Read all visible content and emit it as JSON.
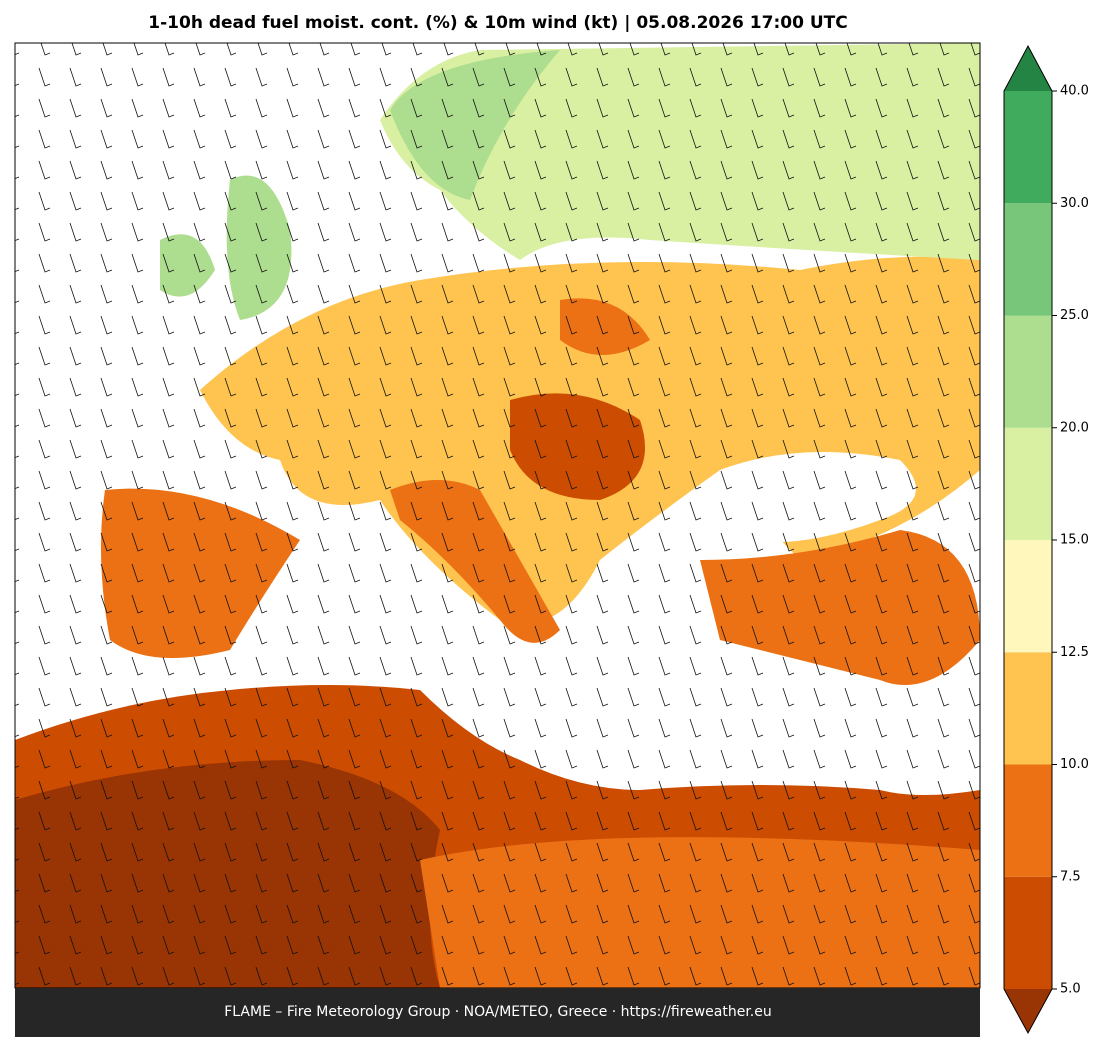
{
  "title": "1-10h dead fuel moist. cont. (%) & 10m wind (kt)  |  05.08.2026 17:00 UTC",
  "footer": "FLAME – Fire Meteorology Group · NOA/METEO, Greece · https://fireweather.eu",
  "colorbar": {
    "ticks": [
      {
        "value": 5,
        "label": "5.0"
      },
      {
        "value": 7.5,
        "label": "7.5"
      },
      {
        "value": 10,
        "label": "10.0"
      },
      {
        "value": 12.5,
        "label": "12.5"
      },
      {
        "value": 15,
        "label": "15.0"
      },
      {
        "value": 20,
        "label": "20.0"
      },
      {
        "value": 25,
        "label": "25.0"
      },
      {
        "value": 30,
        "label": "30.0"
      },
      {
        "value": 40,
        "label": "40.0"
      }
    ],
    "colors": [
      "#cc4c02",
      "#ec7014",
      "#fec44f",
      "#fff7bc",
      "#d9f0a3",
      "#addd8e",
      "#78c679",
      "#41ab5d"
    ],
    "under_color": "#993404",
    "over_color": "#238443"
  }
}
